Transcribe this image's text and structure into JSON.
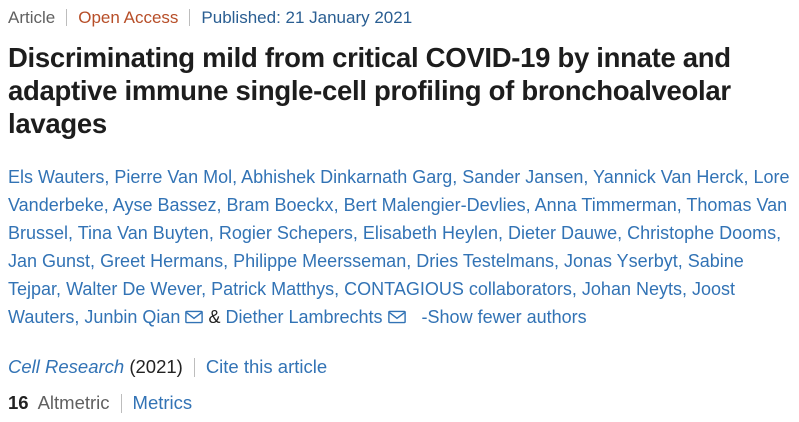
{
  "meta": {
    "type_label": "Article",
    "access_label": "Open Access",
    "published_label": "Published: 21 January 2021"
  },
  "title": "Discriminating mild from critical COVID-19 by innate and adaptive immune single-cell profiling of bronchoalveolar lavages",
  "authors": {
    "names": [
      "Els Wauters",
      "Pierre Van Mol",
      "Abhishek Dinkarnath Garg",
      "Sander Jansen",
      "Yannick Van Herck",
      "Lore Vanderbeke",
      "Ayse Bassez",
      "Bram Boeckx",
      "Bert Malengier-Devlies",
      "Anna Timmerman",
      "Thomas Van Brussel",
      "Tina Van Buyten",
      "Rogier Schepers",
      "Elisabeth Heylen",
      "Dieter Dauwe",
      "Christophe Dooms",
      "Jan Gunst",
      "Greet Hermans",
      "Philippe Meersseman",
      "Dries Testelmans",
      "Jonas Yserbyt",
      "Sabine Tejpar",
      "Walter De Wever",
      "Patrick Matthys",
      "CONTAGIOUS collaborators",
      "Johan Neyts",
      "Joost Wauters",
      "Junbin Qian",
      "Diether Lambrechts"
    ],
    "email_icon_after_indices": [
      27,
      28
    ],
    "email_icon_name": "email-icon",
    "ampersand": "&",
    "show_fewer_label": "-Show fewer authors"
  },
  "journal": {
    "name": "Cell Research",
    "year": "(2021)",
    "cite_label": "Cite this article"
  },
  "metrics": {
    "altmetric_count": "16",
    "altmetric_label": "Altmetric",
    "metrics_label": "Metrics"
  },
  "colors": {
    "link_blue": "#3273b5",
    "published_blue": "#2a5e92",
    "open_access": "#b74e28",
    "gray_label": "#616161",
    "title_dark": "#1d1d1d",
    "body_dark": "#222222"
  }
}
